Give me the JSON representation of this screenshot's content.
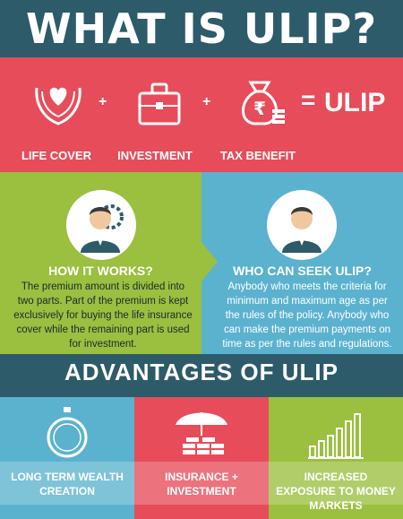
{
  "title": "WHAT IS ULIP?",
  "formula": {
    "items": [
      "LIFE COVER",
      "INVESTMENT",
      "TAX BENEFIT"
    ],
    "plus": "+",
    "equals": "=",
    "result": "ULIP",
    "icons": [
      "hands-heart-icon",
      "briefcase-icon",
      "money-bag-rupee-icon"
    ]
  },
  "how_it_works": {
    "title": "HOW IT WORKS?",
    "text": "The premium amount is divided into two parts. Part of the premium is kept exclusively for buying the life insurance cover while the remaining part is used for investment."
  },
  "who_can_seek": {
    "title": "WHO CAN SEEK ULIP?",
    "text": "Anybody who meets the criteria for minimum and maximum age as per the rules of the policy. Anybody who can make the premium payments on time as per the rules and regulations."
  },
  "advantages": {
    "title": "ADVANTAGES OF ULIP",
    "items": [
      {
        "label": "LONG TERM WEALTH CREATION",
        "icon": "pocket-watch-icon"
      },
      {
        "label": "INSURANCE + INVESTMENT",
        "icon": "umbrella-coins-icon"
      },
      {
        "label": "INCREASED EXPOSURE TO MONEY MARKETS",
        "icon": "bar-chart-icon"
      }
    ]
  },
  "colors": {
    "dark_teal": "#2d5b6a",
    "coral": "#e74c5a",
    "green": "#9bbf3f",
    "blue": "#5bb2cf"
  }
}
